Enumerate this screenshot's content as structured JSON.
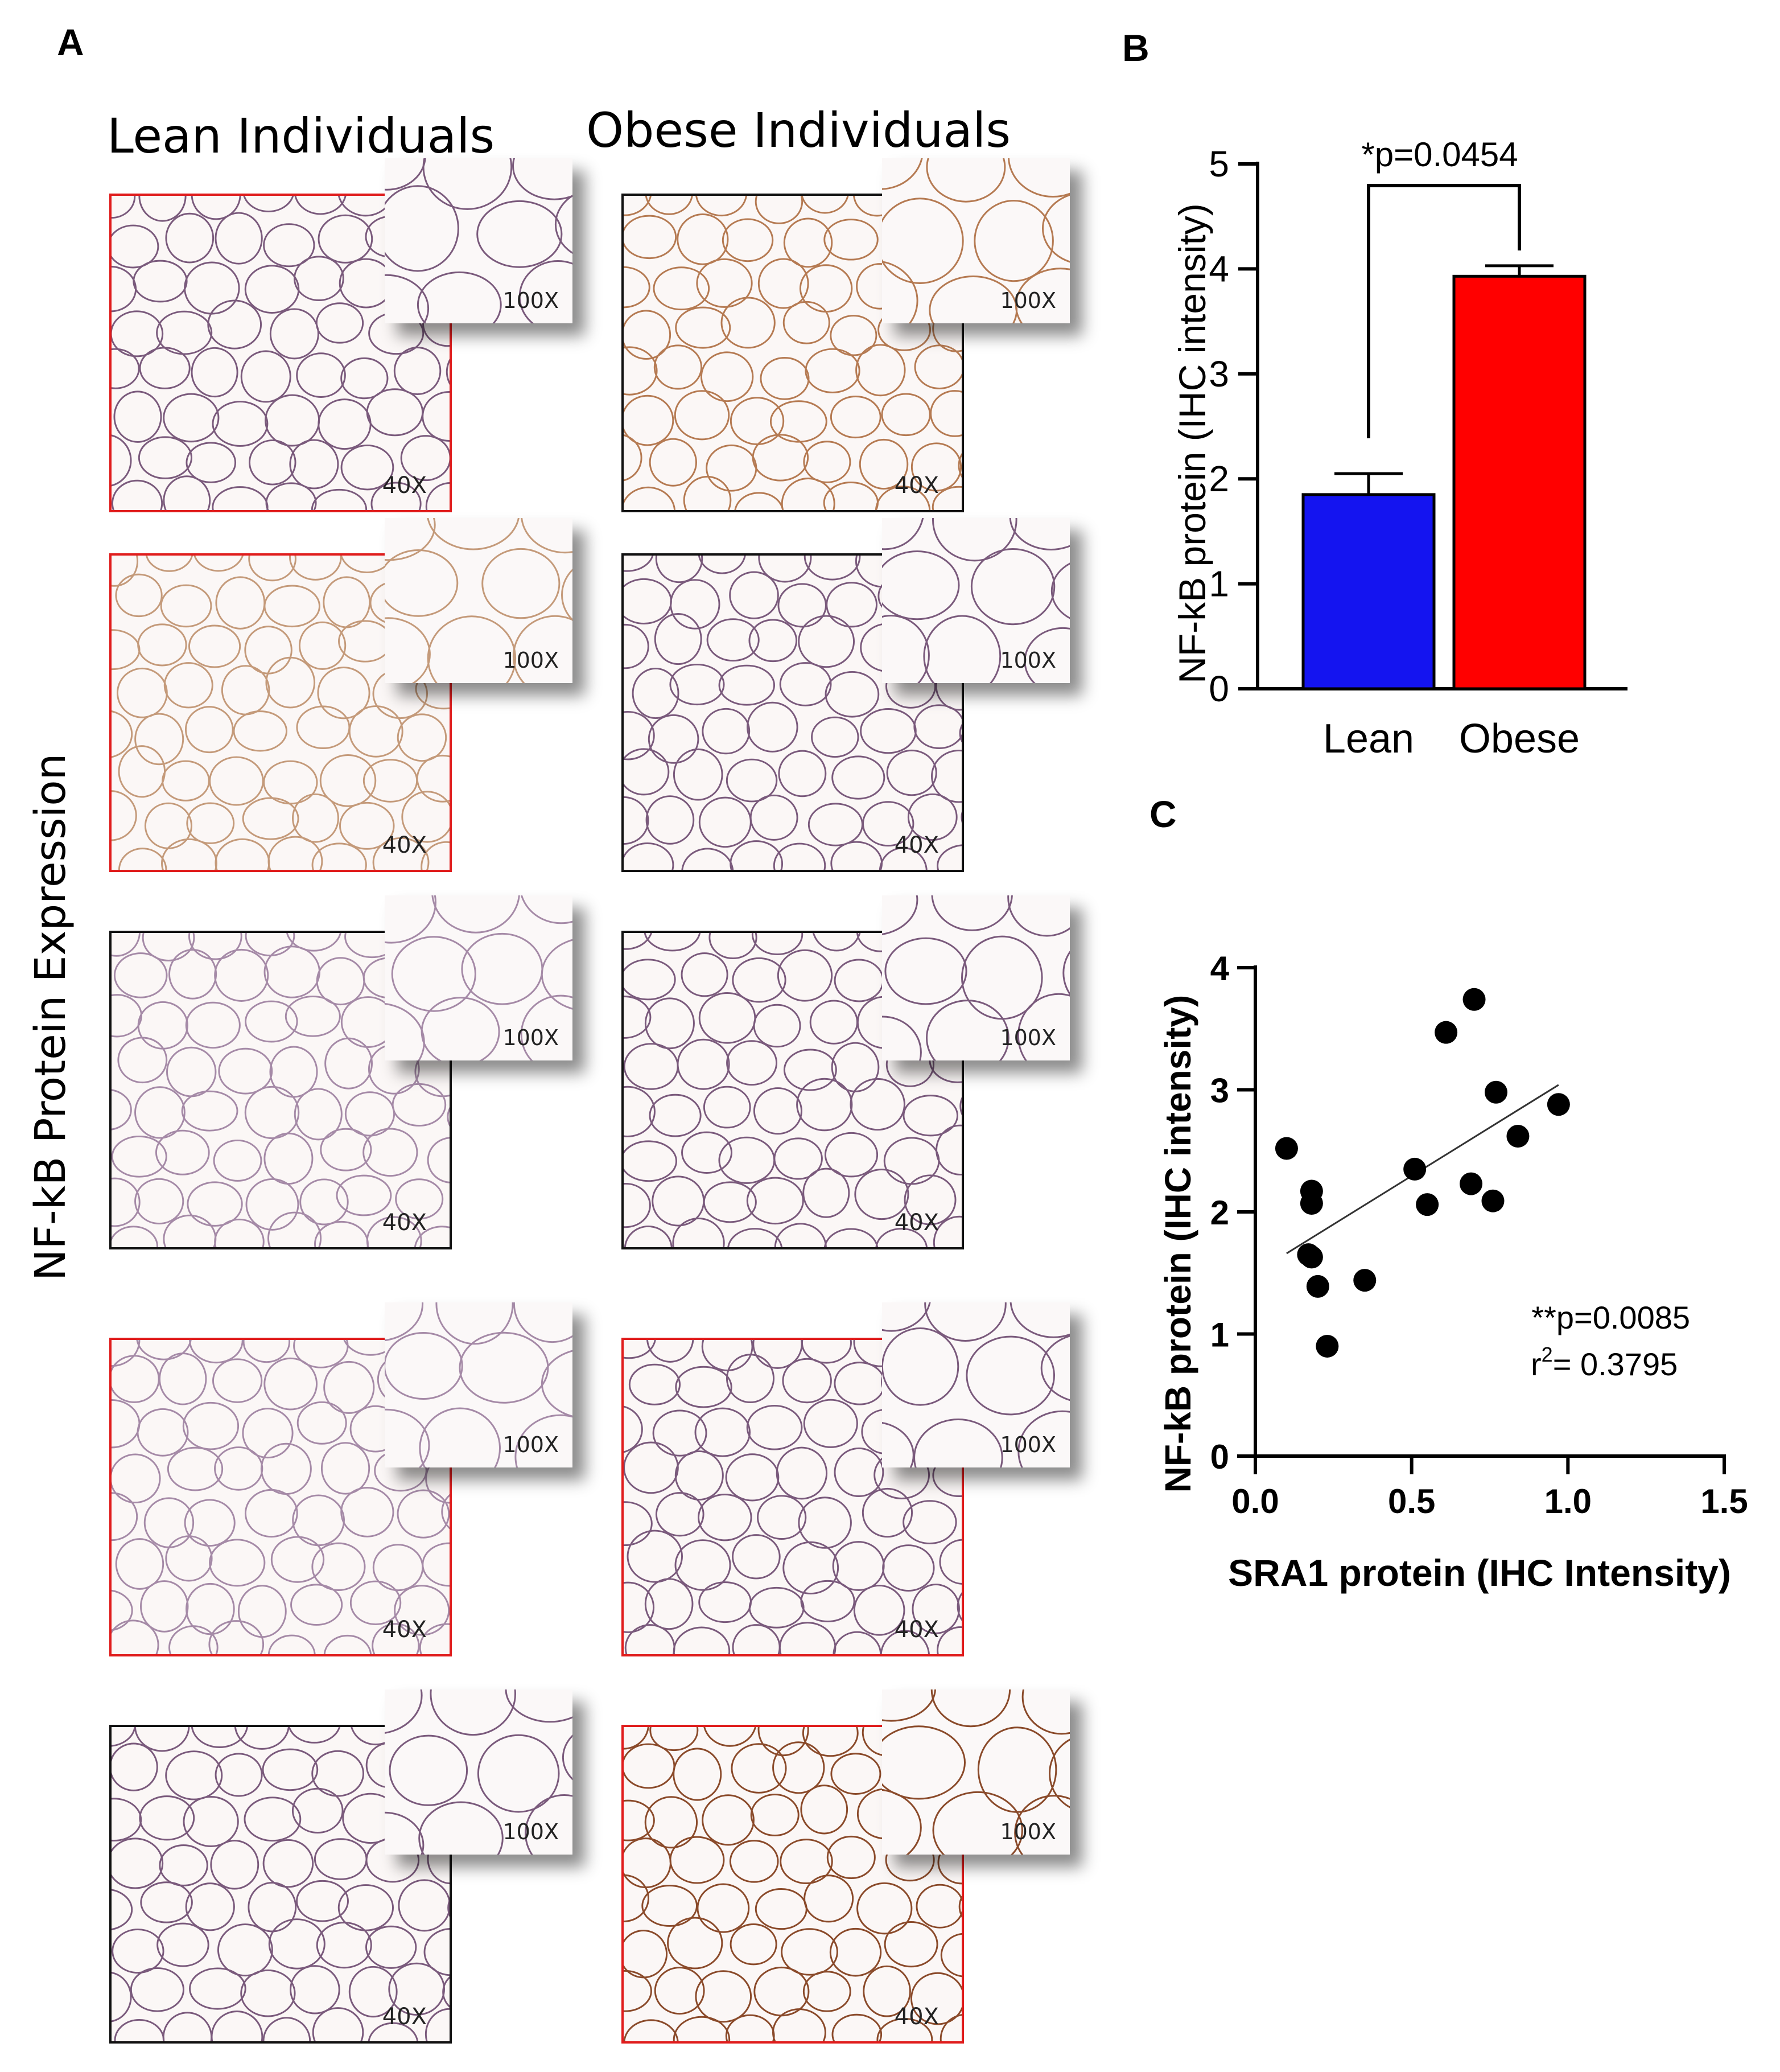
{
  "panels": {
    "a": {
      "letter": "A",
      "columns": [
        "Lean Individuals",
        "Obese Individuals"
      ],
      "row_label": "NF-kB Protein Expression",
      "low_mag_label": "40X",
      "high_mag_label": "100X",
      "images": [
        {
          "column": "Lean Individuals",
          "row": 1,
          "frame_color": "#e01c1c",
          "stain": "purple"
        },
        {
          "column": "Obese Individuals",
          "row": 1,
          "frame_color": "#111111",
          "stain": "brown"
        },
        {
          "column": "Lean Individuals",
          "row": 2,
          "frame_color": "#e01c1c",
          "stain": "light-brown"
        },
        {
          "column": "Obese Individuals",
          "row": 2,
          "frame_color": "#111111",
          "stain": "purple"
        },
        {
          "column": "Lean Individuals",
          "row": 3,
          "frame_color": "#111111",
          "stain": "light-purple"
        },
        {
          "column": "Obese Individuals",
          "row": 3,
          "frame_color": "#111111",
          "stain": "purple"
        },
        {
          "column": "Lean Individuals",
          "row": 4,
          "frame_color": "#e01c1c",
          "stain": "light-purple"
        },
        {
          "column": "Obese Individuals",
          "row": 4,
          "frame_color": "#e01c1c",
          "stain": "purple"
        },
        {
          "column": "Lean Individuals",
          "row": 5,
          "frame_color": "#111111",
          "stain": "purple"
        },
        {
          "column": "Obese Individuals",
          "row": 5,
          "frame_color": "#e01c1c",
          "stain": "dark-brown"
        }
      ]
    },
    "b": {
      "letter": "B"
    },
    "c": {
      "letter": "C"
    }
  },
  "chart_data": [
    {
      "id": "B",
      "type": "bar",
      "categories": [
        "Lean",
        "Obese"
      ],
      "values": [
        1.85,
        3.93
      ],
      "errors": [
        0.2,
        0.1
      ],
      "colors": [
        "#1414f0",
        "#ff0000"
      ],
      "ylabel": "NF-kB protein (IHC intensity)",
      "xlabel": "",
      "ylim": [
        0,
        5
      ],
      "yticks": [
        "0",
        "1",
        "2",
        "3",
        "4",
        "5"
      ],
      "annotation": "*p=0.0454",
      "grid": false
    },
    {
      "id": "C",
      "type": "scatter",
      "x": [
        0.1,
        0.18,
        0.18,
        0.17,
        0.18,
        0.2,
        0.23,
        0.35,
        0.51,
        0.55,
        0.61,
        0.69,
        0.7,
        0.76,
        0.77,
        0.84,
        0.97
      ],
      "y": [
        2.52,
        2.17,
        2.07,
        1.65,
        1.63,
        1.39,
        0.9,
        1.44,
        2.35,
        2.06,
        3.47,
        2.23,
        3.74,
        2.09,
        2.98,
        2.62,
        2.88
      ],
      "fit_line": {
        "x": [
          0.1,
          0.97
        ],
        "y": [
          1.66,
          3.04
        ]
      },
      "xlabel": "SRA1 protein (IHC Intensity)",
      "ylabel": "NF-kB protein (IHC intensity)",
      "xlim": [
        0,
        1.5
      ],
      "ylim": [
        0,
        4
      ],
      "xticks": [
        "0.0",
        "0.5",
        "1.0",
        "1.5"
      ],
      "yticks": [
        "0",
        "1",
        "2",
        "3",
        "4"
      ],
      "stat_p": "**p=0.0085",
      "stat_r2_base": "r",
      "stat_r2_sup": "2",
      "stat_r2_value": "= 0.3795",
      "grid": false
    }
  ]
}
